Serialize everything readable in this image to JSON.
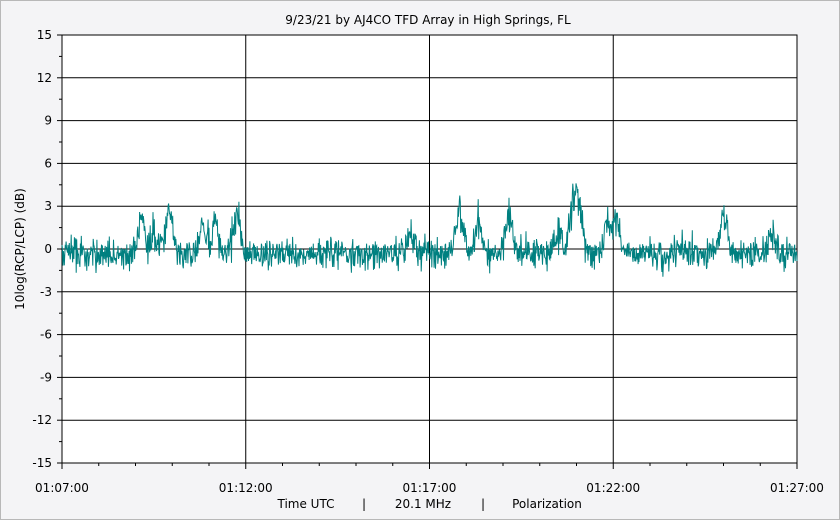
{
  "chart_data": {
    "type": "line",
    "title": "9/23/21  by  AJ4CO TFD Array  in  High Springs, FL",
    "ylabel": "10log(RCP/LCP) (dB)",
    "footer": [
      "Time UTC",
      "|",
      "20.1 MHz",
      "|",
      "Polarization"
    ],
    "ylim": [
      -15,
      15
    ],
    "yticks": [
      "15",
      "12",
      "9",
      "6",
      "3",
      "0",
      "-3",
      "-6",
      "-9",
      "-12",
      "-15"
    ],
    "xlim": [
      "01:07:00",
      "01:27:00"
    ],
    "xticks": [
      "01:07:00",
      "01:12:00",
      "01:17:00",
      "01:22:00",
      "01:27:00"
    ],
    "grid": true,
    "series": [
      {
        "color": "#008080",
        "x_start": "01:07:00",
        "x_end": "01:27:00",
        "baseline": -0.3,
        "noise": 0.55,
        "peaks": [
          {
            "x": "01:09:10",
            "y": 2.9
          },
          {
            "x": "01:09:30",
            "y": 1.6
          },
          {
            "x": "01:09:55",
            "y": 3.6
          },
          {
            "x": "01:10:50",
            "y": 2.0
          },
          {
            "x": "01:11:10",
            "y": 2.4
          },
          {
            "x": "01:11:45",
            "y": 3.0
          },
          {
            "x": "01:16:30",
            "y": 1.7
          },
          {
            "x": "01:17:50",
            "y": 3.5
          },
          {
            "x": "01:18:20",
            "y": 2.7
          },
          {
            "x": "01:19:10",
            "y": 3.4
          },
          {
            "x": "01:20:30",
            "y": 2.0
          },
          {
            "x": "01:20:55",
            "y": 4.4
          },
          {
            "x": "01:21:05",
            "y": 3.0
          },
          {
            "x": "01:21:50",
            "y": 2.5
          },
          {
            "x": "01:22:05",
            "y": 2.3
          },
          {
            "x": "01:25:00",
            "y": 2.9
          },
          {
            "x": "01:26:20",
            "y": 1.5
          }
        ]
      }
    ]
  }
}
